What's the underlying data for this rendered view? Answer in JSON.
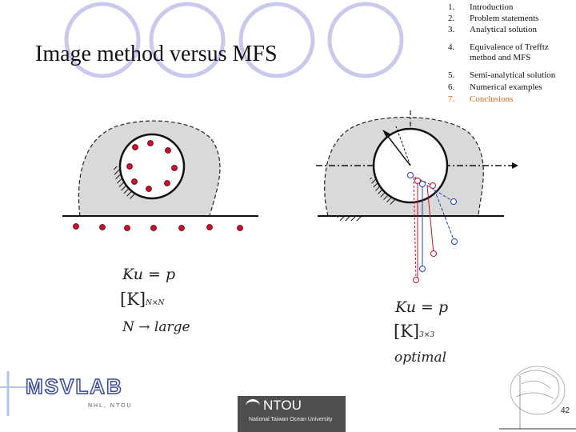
{
  "slide": {
    "title": "Image method versus MFS",
    "page_number": "42"
  },
  "outline": [
    {
      "num": "1.",
      "label": "Introduction"
    },
    {
      "num": "2.",
      "label": "Problem statements"
    },
    {
      "num": "3.",
      "label": "Analytical solution"
    },
    {
      "num": "4.",
      "label": "Equivalence of Trefftz method and MFS"
    },
    {
      "num": "5.",
      "label": "Semi-analytical solution"
    },
    {
      "num": "6.",
      "label": "Numerical examples"
    },
    {
      "num": "7.",
      "label": "Conclusions"
    }
  ],
  "outline_current_color": "#d2691e",
  "left_equations": {
    "eq": "Ku = p",
    "matrix": "[K]",
    "matrix_sub": "N×N",
    "note": "N → large"
  },
  "right_equations": {
    "eq": "Ku = p",
    "matrix": "[K]",
    "matrix_sub": "3×3",
    "note": "optimal"
  },
  "logos": {
    "msvlab_text": "MSVLAB",
    "msvlab_sub": "NHL, NTOU",
    "ntou_text": "NTOU",
    "ntou_sub": "National Taiwan Ocean University"
  },
  "colors": {
    "bubble_stroke": "#c9c9ee",
    "domain_fill": "#d9d9d9",
    "red_point": "#c8102e",
    "blue_point": "#2040c0"
  }
}
